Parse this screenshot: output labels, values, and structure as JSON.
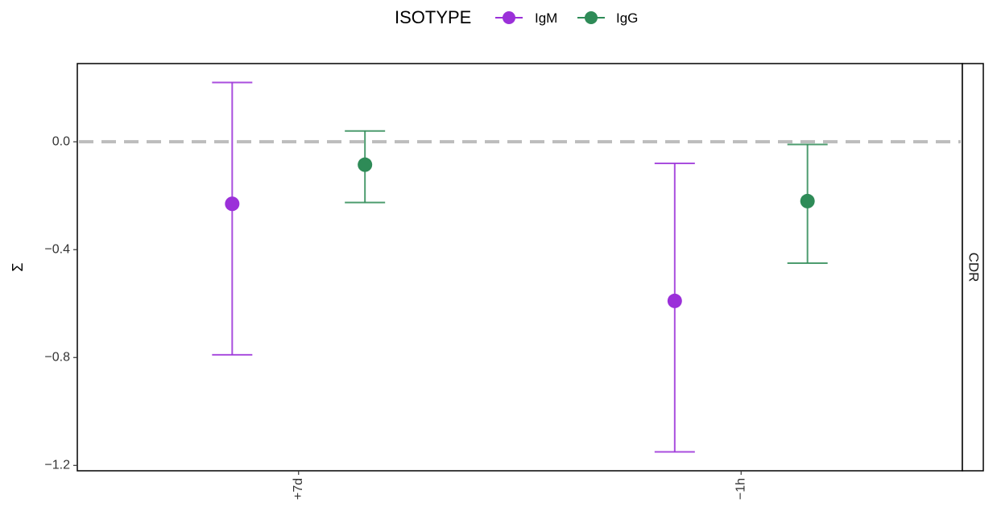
{
  "chart_data": {
    "type": "scatter",
    "subtype": "point-with-errorbars",
    "title": "",
    "xlabel": "",
    "ylabel": "Σ",
    "facet_label": "CDR",
    "legend": {
      "title": "ISOTYPE",
      "position": "top",
      "entries": [
        "IgM",
        "IgG"
      ]
    },
    "categories": [
      "+7d",
      "−1h"
    ],
    "ylim": [
      -1.22,
      0.29
    ],
    "yticks": [
      0.0,
      -0.4,
      -0.8,
      -1.2
    ],
    "ytick_labels": [
      "0.0",
      "−0.4",
      "−0.8",
      "−1.2"
    ],
    "reference_line": {
      "y": 0.0,
      "style": "dashed",
      "color": "#bdbdbd"
    },
    "grid": false,
    "series": [
      {
        "name": "IgM",
        "color": "#9b30d9",
        "points": [
          {
            "category": "+7d",
            "y": -0.23,
            "ymin": -0.79,
            "ymax": 0.22
          },
          {
            "category": "−1h",
            "y": -0.59,
            "ymin": -1.15,
            "ymax": -0.08
          }
        ]
      },
      {
        "name": "IgG",
        "color": "#2e8b57",
        "points": [
          {
            "category": "+7d",
            "y": -0.085,
            "ymin": -0.225,
            "ymax": 0.04
          },
          {
            "category": "−1h",
            "y": -0.22,
            "ymin": -0.45,
            "ymax": -0.01
          }
        ]
      }
    ]
  }
}
